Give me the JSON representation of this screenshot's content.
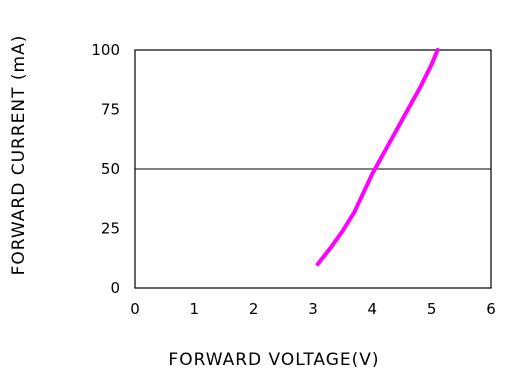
{
  "chart_data": {
    "type": "line",
    "xlabel": "FORWARD VOLTAGE(V)",
    "ylabel": "FORWARD CURRENT (mA)",
    "xlim": [
      0,
      6
    ],
    "ylim": [
      0,
      100
    ],
    "x_ticks": [
      "0",
      "1",
      "2",
      "3",
      "4",
      "5",
      "6"
    ],
    "y_ticks": [
      "0",
      "25",
      "50",
      "75",
      "100"
    ],
    "grid": {
      "horizontal": [
        50
      ]
    },
    "series": [
      {
        "color": "#ff00ff",
        "x": [
          3.08,
          3.3,
          3.5,
          3.7,
          3.85,
          4.0,
          4.2,
          4.4,
          4.6,
          4.8,
          5.0,
          5.1
        ],
        "y": [
          10,
          17,
          24,
          32,
          40,
          48,
          57,
          66,
          75,
          84,
          94,
          100
        ]
      }
    ]
  }
}
